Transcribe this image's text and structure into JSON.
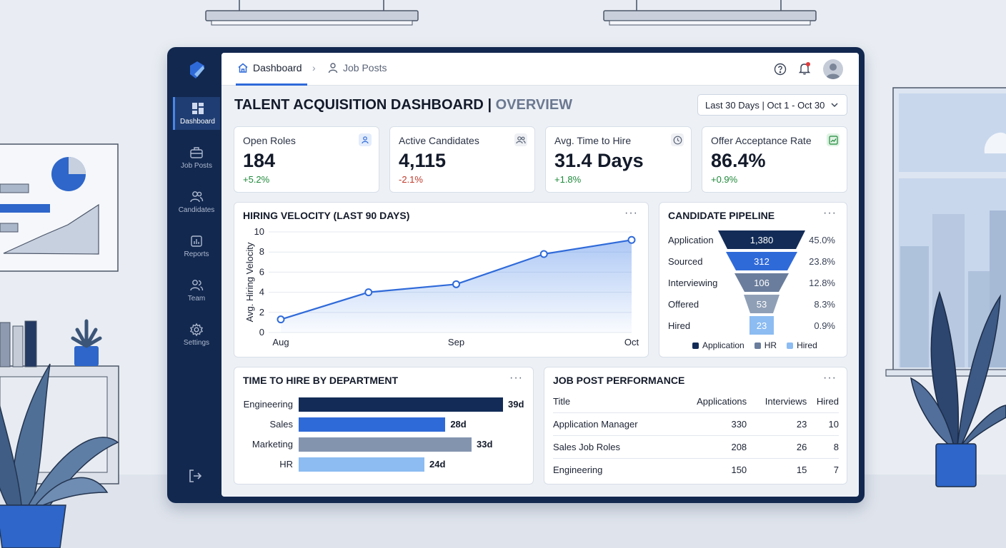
{
  "breadcrumb": {
    "home": "Dashboard",
    "current": "Job Posts"
  },
  "sidebar": {
    "items": [
      {
        "label": "Dashboard",
        "icon": "dashboard-icon"
      },
      {
        "label": "Job Posts",
        "icon": "briefcase-icon"
      },
      {
        "label": "Candidates",
        "icon": "users-icon"
      },
      {
        "label": "Reports",
        "icon": "report-icon"
      },
      {
        "label": "Team",
        "icon": "team-icon"
      },
      {
        "label": "Settings",
        "icon": "gear-icon"
      }
    ]
  },
  "page": {
    "title": "TALENT ACQUISITION DASHBOARD",
    "separator": " | ",
    "subtitle": "OVERVIEW",
    "date_range": "Last 30 Days | Oct 1 - Oct 30"
  },
  "kpis": [
    {
      "label": "Open Roles",
      "value": "184",
      "delta": "+5.2%",
      "trend": "up"
    },
    {
      "label": "Active Candidates",
      "value": "4,115",
      "delta": "-2.1%",
      "trend": "down"
    },
    {
      "label": "Avg. Time to Hire",
      "value": "31.4 Days",
      "delta": "+1.8%",
      "trend": "up"
    },
    {
      "label": "Offer Acceptance Rate",
      "value": "86.4%",
      "delta": "+0.9%",
      "trend": "up"
    }
  ],
  "velocity": {
    "title": "HIRING VELOCITY (LAST 90 DAYS)"
  },
  "pipeline": {
    "title": "CANDIDATE PIPELINE",
    "legend": [
      "Application",
      "HR",
      "Hired"
    ]
  },
  "department": {
    "title": "TIME TO HIRE BY DEPARTMENT"
  },
  "jobposts": {
    "title": "JOB POST PERFORMANCE",
    "headers": [
      "Title",
      "Applications",
      "Interviews",
      "Hired"
    ],
    "rows": [
      [
        "Application Manager",
        "330",
        "23",
        "10"
      ],
      [
        "Sales Job Roles",
        "208",
        "26",
        "8"
      ],
      [
        "Engineering",
        "150",
        "15",
        "7"
      ]
    ]
  },
  "colors": {
    "navy": "#12284f",
    "accent": "#2f6ad9",
    "positive": "#1e8a3a",
    "negative": "#c0392b"
  },
  "chart_data": [
    {
      "type": "area",
      "title": "HIRING VELOCITY (LAST 90 DAYS)",
      "ylabel": "Avg. Hiring Velocity",
      "xlabel": "",
      "x_ticks": [
        "Aug",
        "Sep",
        "Oct"
      ],
      "ylim": [
        0,
        10
      ],
      "y_ticks": [
        "0",
        "2",
        "4",
        "6",
        "8",
        "10"
      ],
      "x": [
        0,
        1,
        2,
        3,
        4
      ],
      "values": [
        1.3,
        4.0,
        4.8,
        7.8,
        9.2
      ]
    },
    {
      "type": "bar",
      "title": "CANDIDATE PIPELINE",
      "categories": [
        "Application",
        "Sourced",
        "Interviewing",
        "Offered",
        "Hired"
      ],
      "values": [
        1380,
        312,
        106,
        53,
        23
      ],
      "value_labels": [
        "1,380",
        "312",
        "106",
        "53",
        "23"
      ],
      "percentages": [
        "45.0%",
        "23.8%",
        "12.8%",
        "8.3%",
        "0.9%"
      ],
      "colors": [
        "#132c57",
        "#2f6ad9",
        "#6a7d9c",
        "#8f9fb6",
        "#8cbcf2"
      ]
    },
    {
      "type": "bar",
      "title": "TIME TO HIRE BY DEPARTMENT",
      "categories": [
        "Engineering",
        "Sales",
        "Marketing",
        "HR"
      ],
      "values": [
        39,
        28,
        33,
        24
      ],
      "value_labels": [
        "39d",
        "28d",
        "33d",
        "24d"
      ],
      "colors": [
        "#132c57",
        "#2f6ad9",
        "#8394af",
        "#8cbcf2"
      ]
    }
  ]
}
